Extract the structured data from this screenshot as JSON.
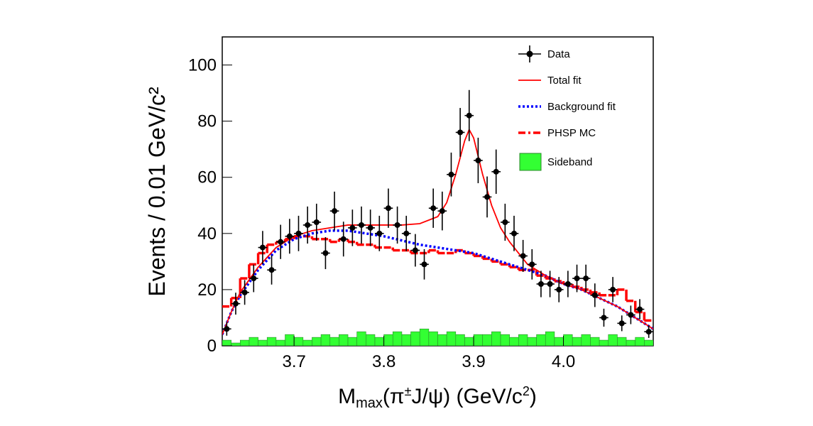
{
  "chart_data": {
    "type": "physics-fit",
    "y_label": "Events / 0.01 GeV/c²",
    "x_label": [
      "M",
      "max",
      "(π",
      "±",
      "J/ψ) (GeV/c",
      "2",
      ")"
    ],
    "xlim": [
      3.62,
      4.1
    ],
    "ylim": [
      0,
      110
    ],
    "xticks": [
      3.7,
      3.8,
      3.9,
      {
        "value": 4,
        "label": "4.0"
      }
    ],
    "yticks": [
      0,
      20,
      40,
      60,
      80,
      100
    ],
    "legend": "top-right",
    "series": [
      {
        "name": "Data",
        "style": "points",
        "color": "#000000",
        "x": [
          3.625,
          3.635,
          3.645,
          3.655,
          3.665,
          3.675,
          3.685,
          3.695,
          3.705,
          3.715,
          3.725,
          3.735,
          3.745,
          3.755,
          3.765,
          3.775,
          3.785,
          3.795,
          3.805,
          3.815,
          3.825,
          3.835,
          3.845,
          3.855,
          3.865,
          3.875,
          3.885,
          3.895,
          3.905,
          3.915,
          3.925,
          3.935,
          3.945,
          3.955,
          3.965,
          3.975,
          3.985,
          3.995,
          4.005,
          4.015,
          4.025,
          4.035,
          4.045,
          4.055,
          4.065,
          4.075,
          4.085,
          4.095
        ],
        "values": [
          6,
          15,
          19,
          24,
          35,
          27,
          37,
          39,
          40,
          43,
          44,
          33,
          48,
          38,
          42,
          43,
          42,
          40,
          49,
          43,
          40,
          34,
          29,
          49,
          48,
          61,
          76,
          82,
          66,
          53,
          62,
          44,
          40,
          32,
          29,
          22,
          22,
          20,
          22,
          24,
          24,
          18,
          10,
          20,
          8,
          11,
          13,
          5
        ],
        "errors": [
          2.4,
          3.9,
          4.4,
          4.9,
          5.9,
          5.2,
          6.1,
          6.2,
          6.3,
          6.6,
          6.6,
          5.7,
          6.9,
          6.2,
          6.5,
          6.6,
          6.5,
          6.3,
          7,
          6.6,
          6.3,
          5.8,
          5.4,
          7,
          6.9,
          7.8,
          8.7,
          9.1,
          8.1,
          7.3,
          7.9,
          6.6,
          6.3,
          5.7,
          5.4,
          4.7,
          4.7,
          4.5,
          4.7,
          4.9,
          4.9,
          4.2,
          3.2,
          4.5,
          2.8,
          3.3,
          3.6,
          2.2
        ]
      },
      {
        "name": "Total fit",
        "style": "line",
        "color": "#ff0000",
        "x": [
          3.62,
          3.63,
          3.64,
          3.66,
          3.68,
          3.7,
          3.72,
          3.74,
          3.76,
          3.78,
          3.8,
          3.82,
          3.84,
          3.86,
          3.87,
          3.88,
          3.89,
          3.895,
          3.9,
          3.91,
          3.92,
          3.93,
          3.94,
          3.96,
          3.98,
          4.0,
          4.02,
          4.04,
          4.06,
          4.08,
          4.1
        ],
        "values": [
          4,
          12,
          19,
          28,
          35,
          39,
          41,
          42,
          43,
          43,
          43,
          43,
          43.5,
          46,
          51,
          61,
          73,
          77,
          74,
          61,
          50,
          42,
          37,
          29,
          25,
          22,
          20,
          17,
          14,
          10,
          6
        ]
      },
      {
        "name": "Background fit",
        "style": "dotted",
        "color": "#0000ff",
        "x": [
          3.62,
          3.63,
          3.64,
          3.66,
          3.68,
          3.7,
          3.72,
          3.74,
          3.76,
          3.78,
          3.8,
          3.82,
          3.84,
          3.86,
          3.88,
          3.9,
          3.92,
          3.94,
          3.96,
          3.98,
          4.0,
          4.02,
          4.04,
          4.06,
          4.08,
          4.1
        ],
        "values": [
          4,
          12,
          18,
          27,
          34,
          38,
          40,
          41,
          41,
          40,
          39,
          37.5,
          36,
          35,
          34,
          33,
          31,
          29,
          27,
          25,
          22,
          20,
          17,
          14,
          10,
          6
        ]
      },
      {
        "name": "PHSP MC",
        "style": "step-dashdot",
        "color": "#ff0000",
        "values": [
          14,
          17,
          24,
          29,
          33,
          36,
          37,
          38,
          39,
          39,
          38,
          38,
          37,
          38,
          37,
          36,
          36,
          35,
          35,
          34,
          34,
          33,
          33,
          34,
          33,
          33,
          34,
          33,
          32,
          31,
          30,
          29,
          28,
          27,
          27,
          25,
          24,
          23,
          22,
          21,
          20,
          19,
          18,
          18,
          20,
          16,
          12,
          9
        ]
      },
      {
        "name": "Sideband",
        "style": "hist-fill",
        "color": "#33ff33",
        "values": [
          2,
          1,
          2,
          3,
          2,
          3,
          2,
          4,
          3,
          2,
          3,
          4,
          3,
          4,
          3,
          5,
          4,
          3,
          4,
          5,
          4,
          5,
          6,
          5,
          4,
          5,
          4,
          3,
          4,
          4,
          5,
          4,
          3,
          4,
          3,
          4,
          5,
          3,
          4,
          3,
          4,
          3,
          2,
          4,
          3,
          2,
          3,
          2
        ]
      }
    ]
  }
}
